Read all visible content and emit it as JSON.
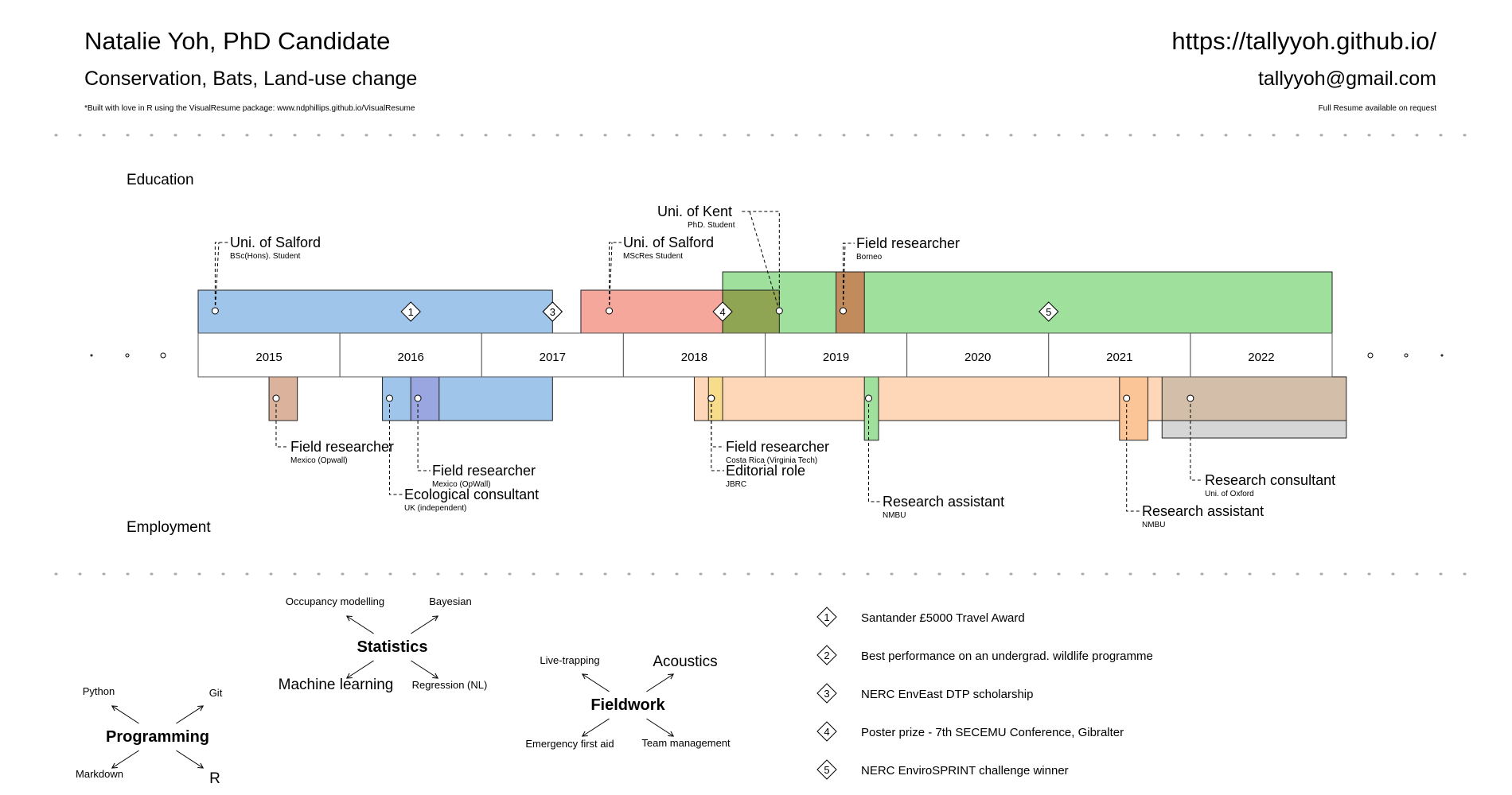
{
  "header": {
    "name": "Natalie Yoh, PhD Candidate",
    "subtitle": "Conservation, Bats, Land-use change",
    "note": "*Built with love in R using the VisualResume package: www.ndphillips.github.io/VisualResume",
    "url": "https://tallyyoh.github.io/",
    "email": "tallyyoh@gmail.com",
    "resume_note": "Full Resume available on request"
  },
  "sections": {
    "education": "Education",
    "employment": "Employment"
  },
  "timeline": {
    "start": 2014.5,
    "end": 2022.5,
    "years": [
      "2015",
      "2016",
      "2017",
      "2018",
      "2019",
      "2020",
      "2021",
      "2022"
    ]
  },
  "education": [
    {
      "title": "Uni. of Salford",
      "sub": "BSc(Hons). Student",
      "start": 2014.5,
      "end": 2017.0,
      "color": "#9fc5ea",
      "marker": 2014.62
    },
    {
      "title": "Uni. of Salford",
      "sub": "MScRes Student",
      "start": 2017.2,
      "end": 2018.2,
      "color": "#f6a79b",
      "marker": 2017.4
    },
    {
      "title": "Uni. of Kent",
      "sub": "PhD. Student",
      "start": 2018.2,
      "end": 2022.5,
      "color": "#9ee09c",
      "marker": 2018.6
    },
    {
      "title": "",
      "sub": "",
      "start": 2018.2,
      "end": 2018.6,
      "color": "#8fa554",
      "marker": null
    },
    {
      "title": "Field researcher",
      "sub": "Borneo",
      "start": 2019.0,
      "end": 2019.2,
      "color": "#c28b5c",
      "marker": 2019.05
    }
  ],
  "employment": [
    {
      "title": "Field researcher",
      "sub": "Mexico (Opwall)",
      "start": 2015.0,
      "end": 2015.2,
      "color": "#dbb29b",
      "marker": 2015.05,
      "bar_h": 1
    },
    {
      "title": "Ecological consultant",
      "sub": "UK (independent)",
      "start": 2015.8,
      "end": 2017.0,
      "color": "#9fc5ea",
      "marker": 2015.85,
      "bar_h": 1
    },
    {
      "title": "Field researcher",
      "sub": "Mexico (OpWall)",
      "start": 2016.0,
      "end": 2016.2,
      "color": "#9aa6e0",
      "marker": 2016.05,
      "bar_h": 1
    },
    {
      "title": "Editorial role",
      "sub": "JBRC",
      "start": 2018.0,
      "end": 2021.5,
      "color": "#fdd7b7",
      "marker": 2018.12,
      "bar_h": 1
    },
    {
      "title": "Field researcher",
      "sub": "Costa Rica (Virginia Tech)",
      "start": 2018.1,
      "end": 2018.2,
      "color": "#f7dc8c",
      "marker": 2018.12,
      "bar_h": 1
    },
    {
      "title": "Research assistant",
      "sub": "NMBU",
      "start": 2019.2,
      "end": 2019.3,
      "color": "#9ee09c",
      "marker": 2019.23,
      "bar_h": 1.45
    },
    {
      "title": "Research assistant",
      "sub": "NMBU",
      "start": 2021.0,
      "end": 2021.2,
      "color": "#fbc597",
      "marker": 2021.05,
      "bar_h": 1.45
    },
    {
      "title": "Research consultant",
      "sub": "Uni. of Oxford",
      "start": 2021.3,
      "end": 2022.6,
      "color": "#d3bfa9",
      "marker": 2021.5,
      "bar_h": 1
    }
  ],
  "awards": [
    {
      "num": "1",
      "text": "Santander £5000 Travel Award",
      "at": 2016.0
    },
    {
      "num": "2",
      "text": "Best performance on an undergrad. wildlife programme",
      "at": 2017.0
    },
    {
      "num": "3",
      "text": "NERC EnvEast DTP scholarship",
      "at": 2017.0
    },
    {
      "num": "4",
      "text": "Poster prize - 7th SECEMU Conference, Gibralter",
      "at": 2018.2
    },
    {
      "num": "5",
      "text": "NERC EnviroSPRINT challenge winner",
      "at": 2020.5
    }
  ],
  "skills": [
    {
      "name": "Programming",
      "items": [
        "Python",
        "Git",
        "Markdown",
        "R"
      ]
    },
    {
      "name": "Statistics",
      "items": [
        "Occupancy modelling",
        "Bayesian",
        "Machine learning",
        "Regression (NL)"
      ]
    },
    {
      "name": "Fieldwork",
      "items": [
        "Live-trapping",
        "Acoustics",
        "Emergency first aid",
        "Team management"
      ]
    }
  ]
}
